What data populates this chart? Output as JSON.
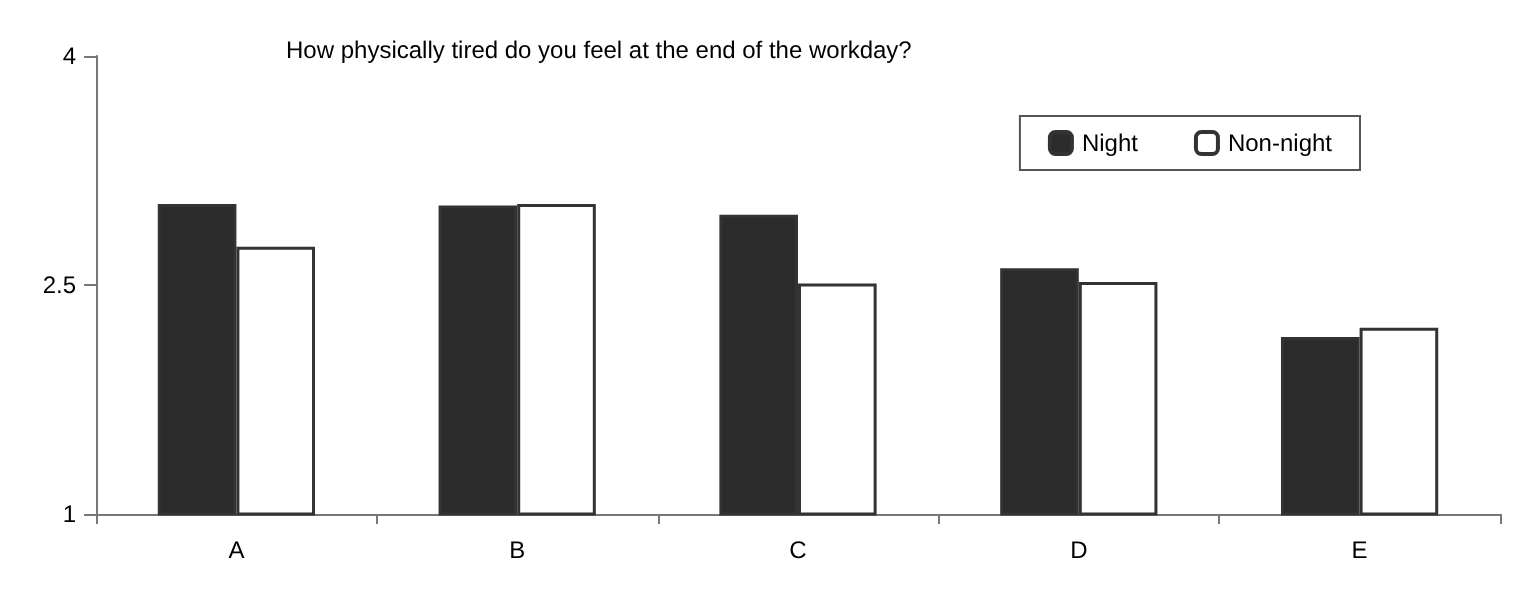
{
  "chart_data": {
    "type": "bar",
    "title": "How physically tired do you feel at the end of the workday?",
    "categories": [
      "A",
      "B",
      "C",
      "D",
      "E"
    ],
    "series": [
      {
        "name": "Night",
        "color": "#2b2b2b",
        "values": [
          3.03,
          3.02,
          2.96,
          2.61,
          2.16
        ]
      },
      {
        "name": "Non-night",
        "color": "#ffffff",
        "values": [
          2.75,
          3.03,
          2.51,
          2.52,
          2.22
        ]
      }
    ],
    "ylim": [
      1,
      4
    ],
    "yticks": [
      1,
      2.5,
      4
    ],
    "grid": false,
    "legend": "top right"
  }
}
